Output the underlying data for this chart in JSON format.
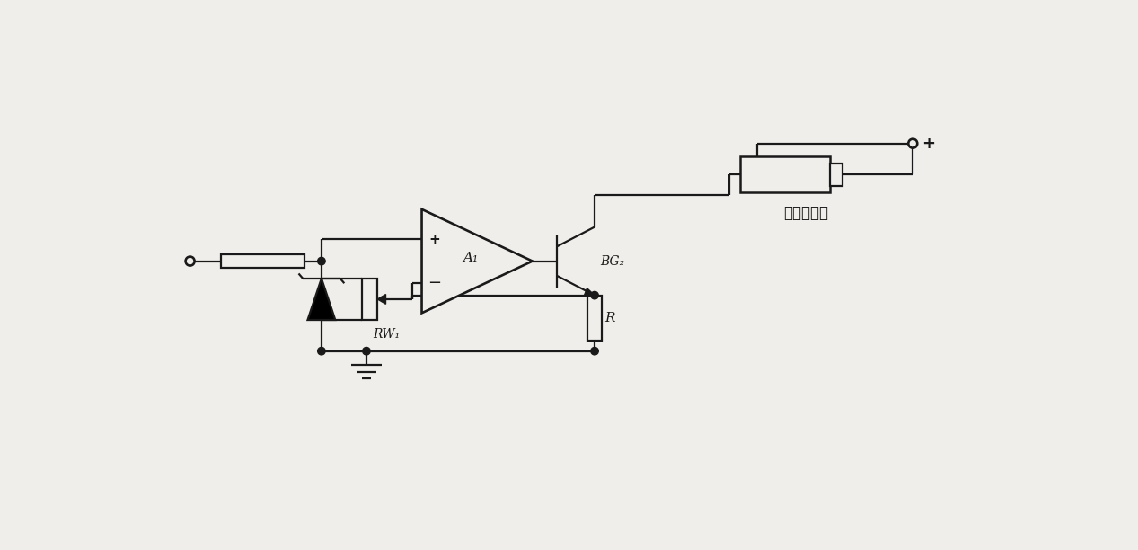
{
  "bg_color": "#f0eeea",
  "line_color": "#1a1a1a",
  "lw": 1.6,
  "fig_width": 12.67,
  "fig_height": 6.12,
  "label_RW1": "RW₁",
  "label_A1": "A₁",
  "label_BG2": "BG₂",
  "label_R": "R",
  "label_lamp": "空心阴极灯",
  "label_plus": "+"
}
